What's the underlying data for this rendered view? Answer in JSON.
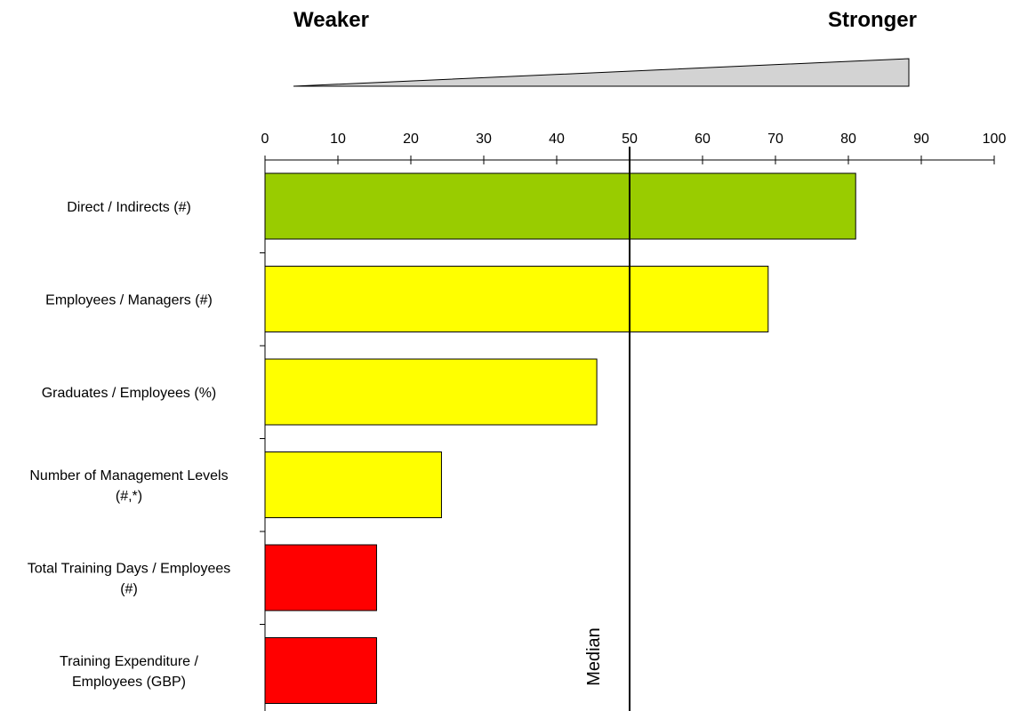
{
  "header": {
    "left_label": "Weaker",
    "right_label": "Stronger",
    "gradient_color": "#d3d3d3"
  },
  "chart_data": {
    "type": "bar",
    "orientation": "horizontal",
    "xlim": [
      0,
      100
    ],
    "x_ticks": [
      "0",
      "10",
      "20",
      "30",
      "40",
      "50",
      "60",
      "70",
      "80",
      "90",
      "100"
    ],
    "categories": [
      [
        "Direct / Indirects (#)"
      ],
      [
        "Employees / Managers (#)"
      ],
      [
        "Graduates / Employees (%)"
      ],
      [
        "Number of Management Levels",
        "(#,*)"
      ],
      [
        "Total Training Days / Employees",
        "(#)"
      ],
      [
        "Training Expenditure /",
        "Employees (GBP)"
      ]
    ],
    "values": [
      81,
      69,
      45.5,
      24.2,
      15.3,
      15.3
    ],
    "bar_colors": [
      "#99cc00",
      "#ffff00",
      "#ffff00",
      "#ffff00",
      "#ff0000",
      "#ff0000"
    ],
    "median": {
      "value": 50,
      "label": "Median"
    },
    "grid": false
  }
}
